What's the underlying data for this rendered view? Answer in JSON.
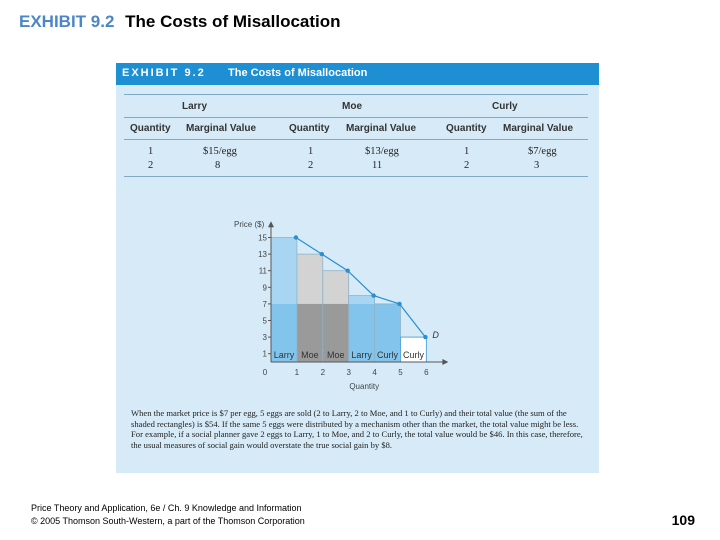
{
  "slide": {
    "exhibit": "EXHIBIT 9.2",
    "title": "The Costs of Misallocation"
  },
  "panel": {
    "exhibit": "EXHIBIT 9.2",
    "title": "The Costs of Misallocation"
  },
  "table": {
    "groups": [
      "Larry",
      "Moe",
      "Curly"
    ],
    "columns": [
      "Quantity",
      "Marginal Value",
      "Quantity",
      "Marginal Value",
      "Quantity",
      "Marginal Value"
    ],
    "rows": [
      [
        "1",
        "$15/egg",
        "1",
        "$13/egg",
        "1",
        "$7/egg"
      ],
      [
        "2",
        "8",
        "2",
        "11",
        "2",
        "3"
      ]
    ]
  },
  "chart_data": {
    "type": "bar",
    "ylabel": "Price ($)",
    "xlabel": "Quantity",
    "xticks": [
      0,
      1,
      2,
      3,
      4,
      5,
      6
    ],
    "yticks": [
      1,
      3,
      5,
      7,
      9,
      11,
      13,
      15
    ],
    "xlim": [
      0,
      6
    ],
    "ylim": [
      0,
      16
    ],
    "market_price": 7,
    "bars": [
      {
        "x": 1,
        "value": 15,
        "label": "Larry",
        "shaded": true
      },
      {
        "x": 2,
        "value": 13,
        "label": "Moe",
        "shaded": true
      },
      {
        "x": 3,
        "value": 11,
        "label": "Moe",
        "shaded": true
      },
      {
        "x": 4,
        "value": 8,
        "label": "Larry",
        "shaded": true
      },
      {
        "x": 5,
        "value": 7,
        "label": "Curly",
        "shaded": true
      },
      {
        "x": 6,
        "value": 3,
        "label": "Curly",
        "shaded": false
      }
    ],
    "demand_curve": {
      "name": "D",
      "points": [
        [
          1,
          15
        ],
        [
          2,
          13
        ],
        [
          3,
          11
        ],
        [
          4,
          8
        ],
        [
          5,
          7
        ],
        [
          6,
          3
        ]
      ]
    },
    "colors": {
      "bar_light": "#a8d6f2",
      "bar_grey": "#d3d3d3",
      "overlap_light": "#82c4ec",
      "overlap_dark": "#9a9a9a",
      "curve": "#2a8ed0"
    }
  },
  "caption": "When the market price is $7 per egg, 5 eggs are sold (2 to Larry, 2 to Moe, and 1 to Curly) and their total value (the sum of the shaded rectangles) is $54. If the same 5 eggs were distributed by a mechanism other than the market, the total value might be less. For example, if a social planner gave 2 eggs to Larry, 1 to Moe, and 2 to Curly, the total value would be $46. In this case, therefore, the usual measures of social gain would overstate the true social gain by $8.",
  "footer": {
    "line1": "Price Theory and Application, 6e / Ch. 9 Knowledge and Information",
    "line2": "© 2005 Thomson South-Western, a part of the Thomson Corporation"
  },
  "page_number": "109"
}
